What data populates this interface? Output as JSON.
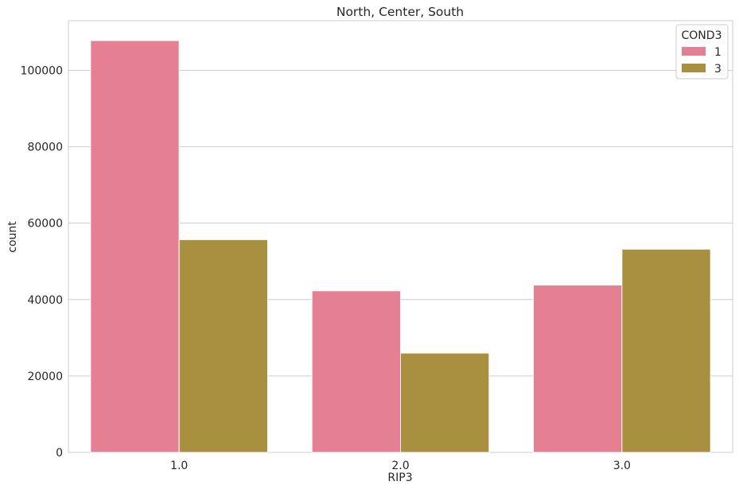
{
  "chart_data": {
    "type": "bar",
    "title": "North, Center, South",
    "xlabel": "RIP3",
    "ylabel": "count",
    "categories": [
      "1.0",
      "2.0",
      "3.0"
    ],
    "series": [
      {
        "name": "1",
        "values": [
          107800,
          42300,
          43800
        ],
        "color": "#e58093"
      },
      {
        "name": "3",
        "values": [
          55700,
          26000,
          53200
        ],
        "color": "#a98f40"
      }
    ],
    "ylim": [
      0,
      113000
    ],
    "yticks": [
      0,
      20000,
      40000,
      60000,
      80000,
      100000
    ],
    "ytick_labels": [
      "0",
      "20000",
      "40000",
      "60000",
      "80000",
      "100000"
    ],
    "grid": "horizontal",
    "legend": {
      "title": "COND3",
      "placement": "top-right"
    }
  }
}
